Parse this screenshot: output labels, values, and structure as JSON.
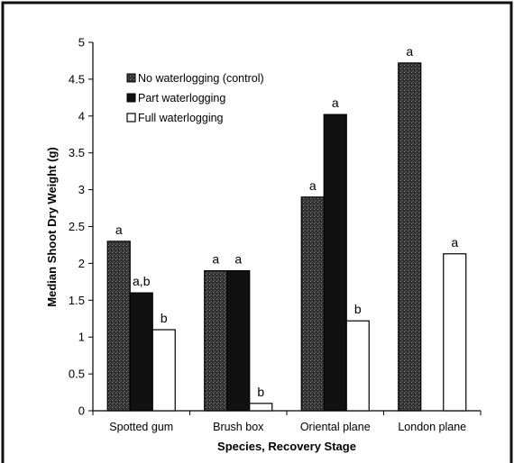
{
  "chart_data": {
    "type": "bar",
    "xlabel": "Species, Recovery Stage",
    "ylabel": "Median Shoot Dry Weight (g)",
    "ylim": [
      0,
      5
    ],
    "y_ticks": [
      "0",
      "0.5",
      "1",
      "1.5",
      "2",
      "2.5",
      "3",
      "3.5",
      "4",
      "4.5",
      "5"
    ],
    "grid": false,
    "legend_position": "top-left",
    "categories": [
      "Spotted gum",
      "Brush box",
      "Oriental plane",
      "London plane"
    ],
    "series": [
      {
        "name": "No waterlogging (control)",
        "fill": "dark-stippled",
        "color": "#2a2a2a",
        "values": [
          2.3,
          1.9,
          2.9,
          4.72
        ],
        "labels": [
          "a",
          "a",
          "a",
          "a"
        ]
      },
      {
        "name": "Part waterlogging",
        "fill": "solid-black",
        "color": "#111111",
        "values": [
          1.6,
          1.9,
          4.02,
          null
        ],
        "labels": [
          "a,b",
          "a",
          "a",
          ""
        ]
      },
      {
        "name": "Full waterlogging",
        "fill": "white",
        "color": "#ffffff",
        "values": [
          1.1,
          0.1,
          1.22,
          2.13
        ],
        "labels": [
          "b",
          "b",
          "b",
          "a"
        ]
      }
    ]
  }
}
